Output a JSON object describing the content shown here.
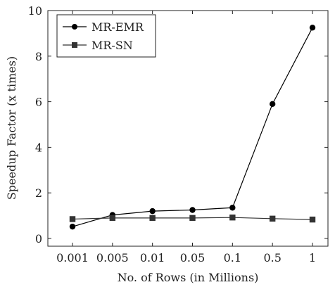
{
  "chart_data": {
    "type": "line",
    "title": "",
    "xlabel": "No. of Rows (in Millions)",
    "ylabel": "Speedup Factor (x times)",
    "categories": [
      "0.001",
      "0.005",
      "0.01",
      "0.05",
      "0.1",
      "0.5",
      "1"
    ],
    "ylim": [
      0,
      10
    ],
    "yticks": [
      0,
      2,
      4,
      6,
      8,
      10
    ],
    "grid": false,
    "legend_position": "top-left",
    "series": [
      {
        "name": "MR-EMR",
        "marker": "circle",
        "color": "#000000",
        "values": [
          0.52,
          1.03,
          1.2,
          1.25,
          1.35,
          5.9,
          9.25
        ]
      },
      {
        "name": "MR-SN",
        "marker": "square",
        "color": "#333333",
        "values": [
          0.85,
          0.9,
          0.9,
          0.9,
          0.92,
          0.87,
          0.83
        ]
      }
    ]
  }
}
